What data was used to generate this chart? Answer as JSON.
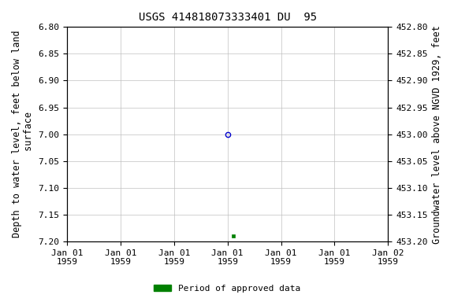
{
  "title": "USGS 414818073333401 DU  95",
  "ylabel_left": "Depth to water level, feet below land\n surface",
  "ylabel_right": "Groundwater level above NGVD 1929, feet",
  "ylim_left": [
    6.8,
    7.2
  ],
  "ylim_right": [
    453.2,
    452.8
  ],
  "yticks_left": [
    6.8,
    6.85,
    6.9,
    6.95,
    7.0,
    7.05,
    7.1,
    7.15,
    7.2
  ],
  "yticks_right": [
    453.2,
    453.15,
    453.1,
    453.05,
    453.0,
    452.95,
    452.9,
    452.85,
    452.8
  ],
  "point_open_value": 7.0,
  "point_filled_value": 7.19,
  "open_marker_color": "#0000cc",
  "filled_marker_color": "#008000",
  "legend_label": "Period of approved data",
  "legend_color": "#008000",
  "background_color": "#ffffff",
  "grid_color": "#c0c0c0",
  "font_family": "monospace",
  "title_fontsize": 10,
  "label_fontsize": 8.5,
  "tick_fontsize": 8
}
